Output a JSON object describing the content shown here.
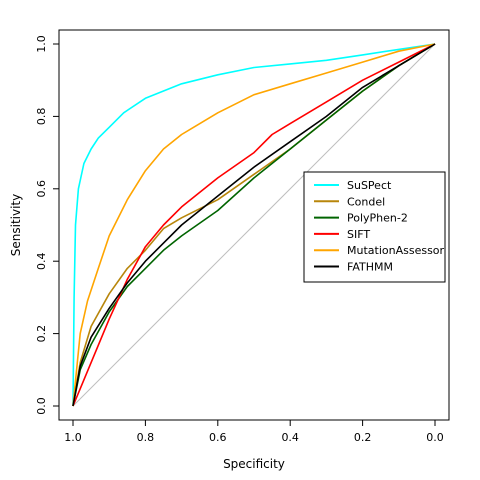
{
  "chart_data": {
    "type": "line",
    "title": "",
    "xlabel": "Specificity",
    "ylabel": "Sensitivity",
    "xlim": [
      1.0,
      0.0
    ],
    "ylim": [
      0.0,
      1.0
    ],
    "x_reversed": true,
    "xticks": [
      1.0,
      0.8,
      0.6,
      0.4,
      0.2,
      0.0
    ],
    "xtick_labels": [
      "1.0",
      "0.8",
      "0.6",
      "0.4",
      "0.2",
      "0.0"
    ],
    "yticks": [
      0.0,
      0.2,
      0.4,
      0.6,
      0.8,
      1.0
    ],
    "ytick_labels": [
      "0.0",
      "0.2",
      "0.4",
      "0.6",
      "0.8",
      "1.0"
    ],
    "grid": false,
    "reference_line": {
      "from": [
        1.0,
        0.0
      ],
      "to": [
        0.0,
        1.0
      ],
      "color": "#bebebe"
    },
    "legend_position": "right",
    "series": [
      {
        "name": "SuSPect",
        "color": "#00ffff",
        "points": [
          [
            1.0,
            0.0
          ],
          [
            0.997,
            0.3
          ],
          [
            0.993,
            0.5
          ],
          [
            0.985,
            0.6
          ],
          [
            0.97,
            0.67
          ],
          [
            0.95,
            0.71
          ],
          [
            0.93,
            0.74
          ],
          [
            0.9,
            0.77
          ],
          [
            0.86,
            0.81
          ],
          [
            0.8,
            0.85
          ],
          [
            0.7,
            0.89
          ],
          [
            0.6,
            0.915
          ],
          [
            0.5,
            0.935
          ],
          [
            0.4,
            0.945
          ],
          [
            0.3,
            0.955
          ],
          [
            0.2,
            0.97
          ],
          [
            0.1,
            0.985
          ],
          [
            0.0,
            1.0
          ]
        ]
      },
      {
        "name": "Condel",
        "color": "#b8860b",
        "points": [
          [
            1.0,
            0.0
          ],
          [
            0.98,
            0.12
          ],
          [
            0.95,
            0.22
          ],
          [
            0.9,
            0.31
          ],
          [
            0.85,
            0.38
          ],
          [
            0.8,
            0.43
          ],
          [
            0.75,
            0.49
          ],
          [
            0.7,
            0.52
          ],
          [
            0.6,
            0.57
          ],
          [
            0.5,
            0.64
          ],
          [
            0.4,
            0.71
          ],
          [
            0.3,
            0.79
          ],
          [
            0.2,
            0.87
          ],
          [
            0.1,
            0.94
          ],
          [
            0.0,
            1.0
          ]
        ]
      },
      {
        "name": "PolyPhen-2",
        "color": "#006400",
        "points": [
          [
            1.0,
            0.0
          ],
          [
            0.98,
            0.1
          ],
          [
            0.95,
            0.17
          ],
          [
            0.9,
            0.26
          ],
          [
            0.85,
            0.33
          ],
          [
            0.8,
            0.38
          ],
          [
            0.75,
            0.43
          ],
          [
            0.7,
            0.47
          ],
          [
            0.6,
            0.54
          ],
          [
            0.5,
            0.63
          ],
          [
            0.4,
            0.71
          ],
          [
            0.3,
            0.79
          ],
          [
            0.2,
            0.87
          ],
          [
            0.1,
            0.94
          ],
          [
            0.0,
            1.0
          ]
        ]
      },
      {
        "name": "SIFT",
        "color": "#ff0000",
        "points": [
          [
            1.0,
            0.0
          ],
          [
            0.95,
            0.12
          ],
          [
            0.9,
            0.24
          ],
          [
            0.85,
            0.35
          ],
          [
            0.8,
            0.44
          ],
          [
            0.75,
            0.5
          ],
          [
            0.7,
            0.55
          ],
          [
            0.6,
            0.63
          ],
          [
            0.5,
            0.7
          ],
          [
            0.45,
            0.75
          ],
          [
            0.4,
            0.78
          ],
          [
            0.3,
            0.84
          ],
          [
            0.2,
            0.9
          ],
          [
            0.1,
            0.95
          ],
          [
            0.0,
            1.0
          ]
        ]
      },
      {
        "name": "MutationAssessor",
        "color": "#ffa500",
        "points": [
          [
            1.0,
            0.0
          ],
          [
            0.98,
            0.2
          ],
          [
            0.96,
            0.29
          ],
          [
            0.93,
            0.38
          ],
          [
            0.9,
            0.47
          ],
          [
            0.85,
            0.57
          ],
          [
            0.8,
            0.65
          ],
          [
            0.75,
            0.71
          ],
          [
            0.7,
            0.75
          ],
          [
            0.6,
            0.81
          ],
          [
            0.5,
            0.86
          ],
          [
            0.4,
            0.89
          ],
          [
            0.3,
            0.92
          ],
          [
            0.2,
            0.95
          ],
          [
            0.1,
            0.98
          ],
          [
            0.0,
            1.0
          ]
        ]
      },
      {
        "name": "FATHMM",
        "color": "#000000",
        "points": [
          [
            1.0,
            0.0
          ],
          [
            0.98,
            0.11
          ],
          [
            0.95,
            0.19
          ],
          [
            0.9,
            0.27
          ],
          [
            0.85,
            0.34
          ],
          [
            0.8,
            0.4
          ],
          [
            0.75,
            0.45
          ],
          [
            0.7,
            0.5
          ],
          [
            0.6,
            0.58
          ],
          [
            0.5,
            0.66
          ],
          [
            0.4,
            0.73
          ],
          [
            0.3,
            0.8
          ],
          [
            0.2,
            0.88
          ],
          [
            0.1,
            0.94
          ],
          [
            0.0,
            1.0
          ]
        ]
      }
    ]
  }
}
